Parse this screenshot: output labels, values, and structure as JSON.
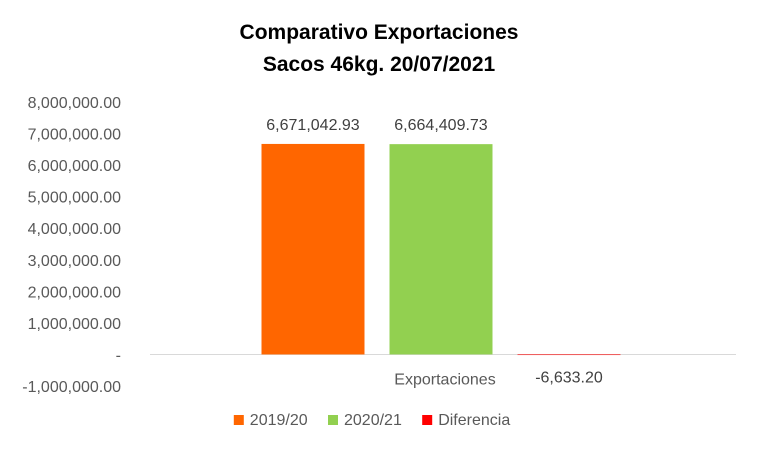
{
  "chart_data": {
    "type": "bar",
    "title_lines": [
      "Comparativo  Exportaciones",
      "Sacos 46kg. 20/07/2021"
    ],
    "categories": [
      "Exportaciones"
    ],
    "series": [
      {
        "name": "2019/20",
        "values": [
          6671042.93
        ],
        "label": "6,671,042.93",
        "color": "#ff6600"
      },
      {
        "name": "2020/21",
        "values": [
          6664409.73
        ],
        "label": "6,664,409.73",
        "color": "#92d050"
      },
      {
        "name": "Diferencia",
        "values": [
          -6633.2
        ],
        "label": "-6,633.20",
        "color": "#ff0000"
      }
    ],
    "ylim": [
      -1000000,
      8000000
    ],
    "y_ticks": [
      {
        "value": 8000000,
        "label": "8,000,000.00"
      },
      {
        "value": 7000000,
        "label": "7,000,000.00"
      },
      {
        "value": 6000000,
        "label": "6,000,000.00"
      },
      {
        "value": 5000000,
        "label": "5,000,000.00"
      },
      {
        "value": 4000000,
        "label": "4,000,000.00"
      },
      {
        "value": 3000000,
        "label": "3,000,000.00"
      },
      {
        "value": 2000000,
        "label": "2,000,000.00"
      },
      {
        "value": 1000000,
        "label": "1,000,000.00"
      },
      {
        "value": 0,
        "label": "-"
      },
      {
        "value": -1000000,
        "label": "-1,000,000.00"
      }
    ],
    "grid": false,
    "legend_position": "bottom"
  }
}
